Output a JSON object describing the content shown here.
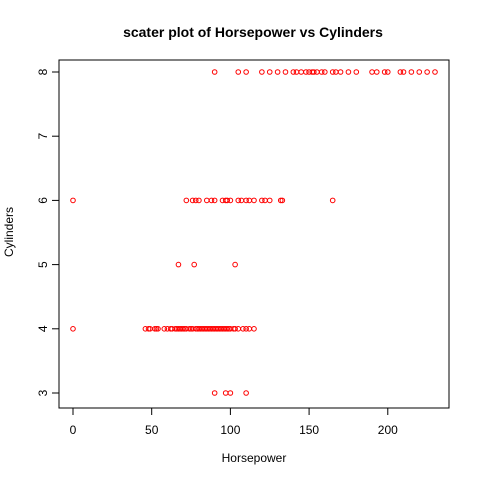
{
  "chart_data": {
    "type": "scatter",
    "title": "scater plot of Horsepower vs Cylinders",
    "xlabel": "Horsepower",
    "ylabel": "Cylinders",
    "xlim": [
      0,
      230
    ],
    "ylim": [
      3,
      8
    ],
    "xticks": [
      0,
      50,
      100,
      150,
      200
    ],
    "yticks": [
      3,
      4,
      5,
      6,
      7,
      8
    ],
    "grid": false,
    "point_color": "#ff0000",
    "series": [
      {
        "x": [
          90,
          105,
          110,
          120,
          125,
          130,
          135,
          140,
          142,
          145,
          148,
          150,
          152,
          153,
          155,
          158,
          160,
          165,
          167,
          170,
          175,
          180,
          190,
          193,
          198,
          200,
          208,
          210,
          215,
          220,
          225,
          230,
          0,
          72,
          76,
          78,
          80,
          85,
          88,
          90,
          95,
          97,
          98,
          100,
          105,
          107,
          110,
          112,
          115,
          120,
          122,
          125,
          132,
          133,
          165,
          67,
          77,
          103,
          0,
          46,
          48,
          49,
          52,
          53,
          54,
          58,
          60,
          62,
          63,
          65,
          66,
          67,
          68,
          69,
          70,
          71,
          72,
          74,
          75,
          76,
          78,
          79,
          80,
          81,
          82,
          83,
          84,
          85,
          86,
          87,
          88,
          89,
          90,
          91,
          92,
          93,
          94,
          95,
          96,
          97,
          98,
          99,
          100,
          102,
          103,
          105,
          108,
          110,
          112,
          115,
          90,
          97,
          100,
          110
        ],
        "y": [
          8,
          8,
          8,
          8,
          8,
          8,
          8,
          8,
          8,
          8,
          8,
          8,
          8,
          8,
          8,
          8,
          8,
          8,
          8,
          8,
          8,
          8,
          8,
          8,
          8,
          8,
          8,
          8,
          8,
          8,
          8,
          8,
          6,
          6,
          6,
          6,
          6,
          6,
          6,
          6,
          6,
          6,
          6,
          6,
          6,
          6,
          6,
          6,
          6,
          6,
          6,
          6,
          6,
          6,
          6,
          5,
          5,
          5,
          4,
          4,
          4,
          4,
          4,
          4,
          4,
          4,
          4,
          4,
          4,
          4,
          4,
          4,
          4,
          4,
          4,
          4,
          4,
          4,
          4,
          4,
          4,
          4,
          4,
          4,
          4,
          4,
          4,
          4,
          4,
          4,
          4,
          4,
          4,
          4,
          4,
          4,
          4,
          4,
          4,
          4,
          4,
          4,
          4,
          4,
          4,
          4,
          4,
          4,
          4,
          4,
          3,
          3,
          3,
          3
        ]
      }
    ]
  }
}
